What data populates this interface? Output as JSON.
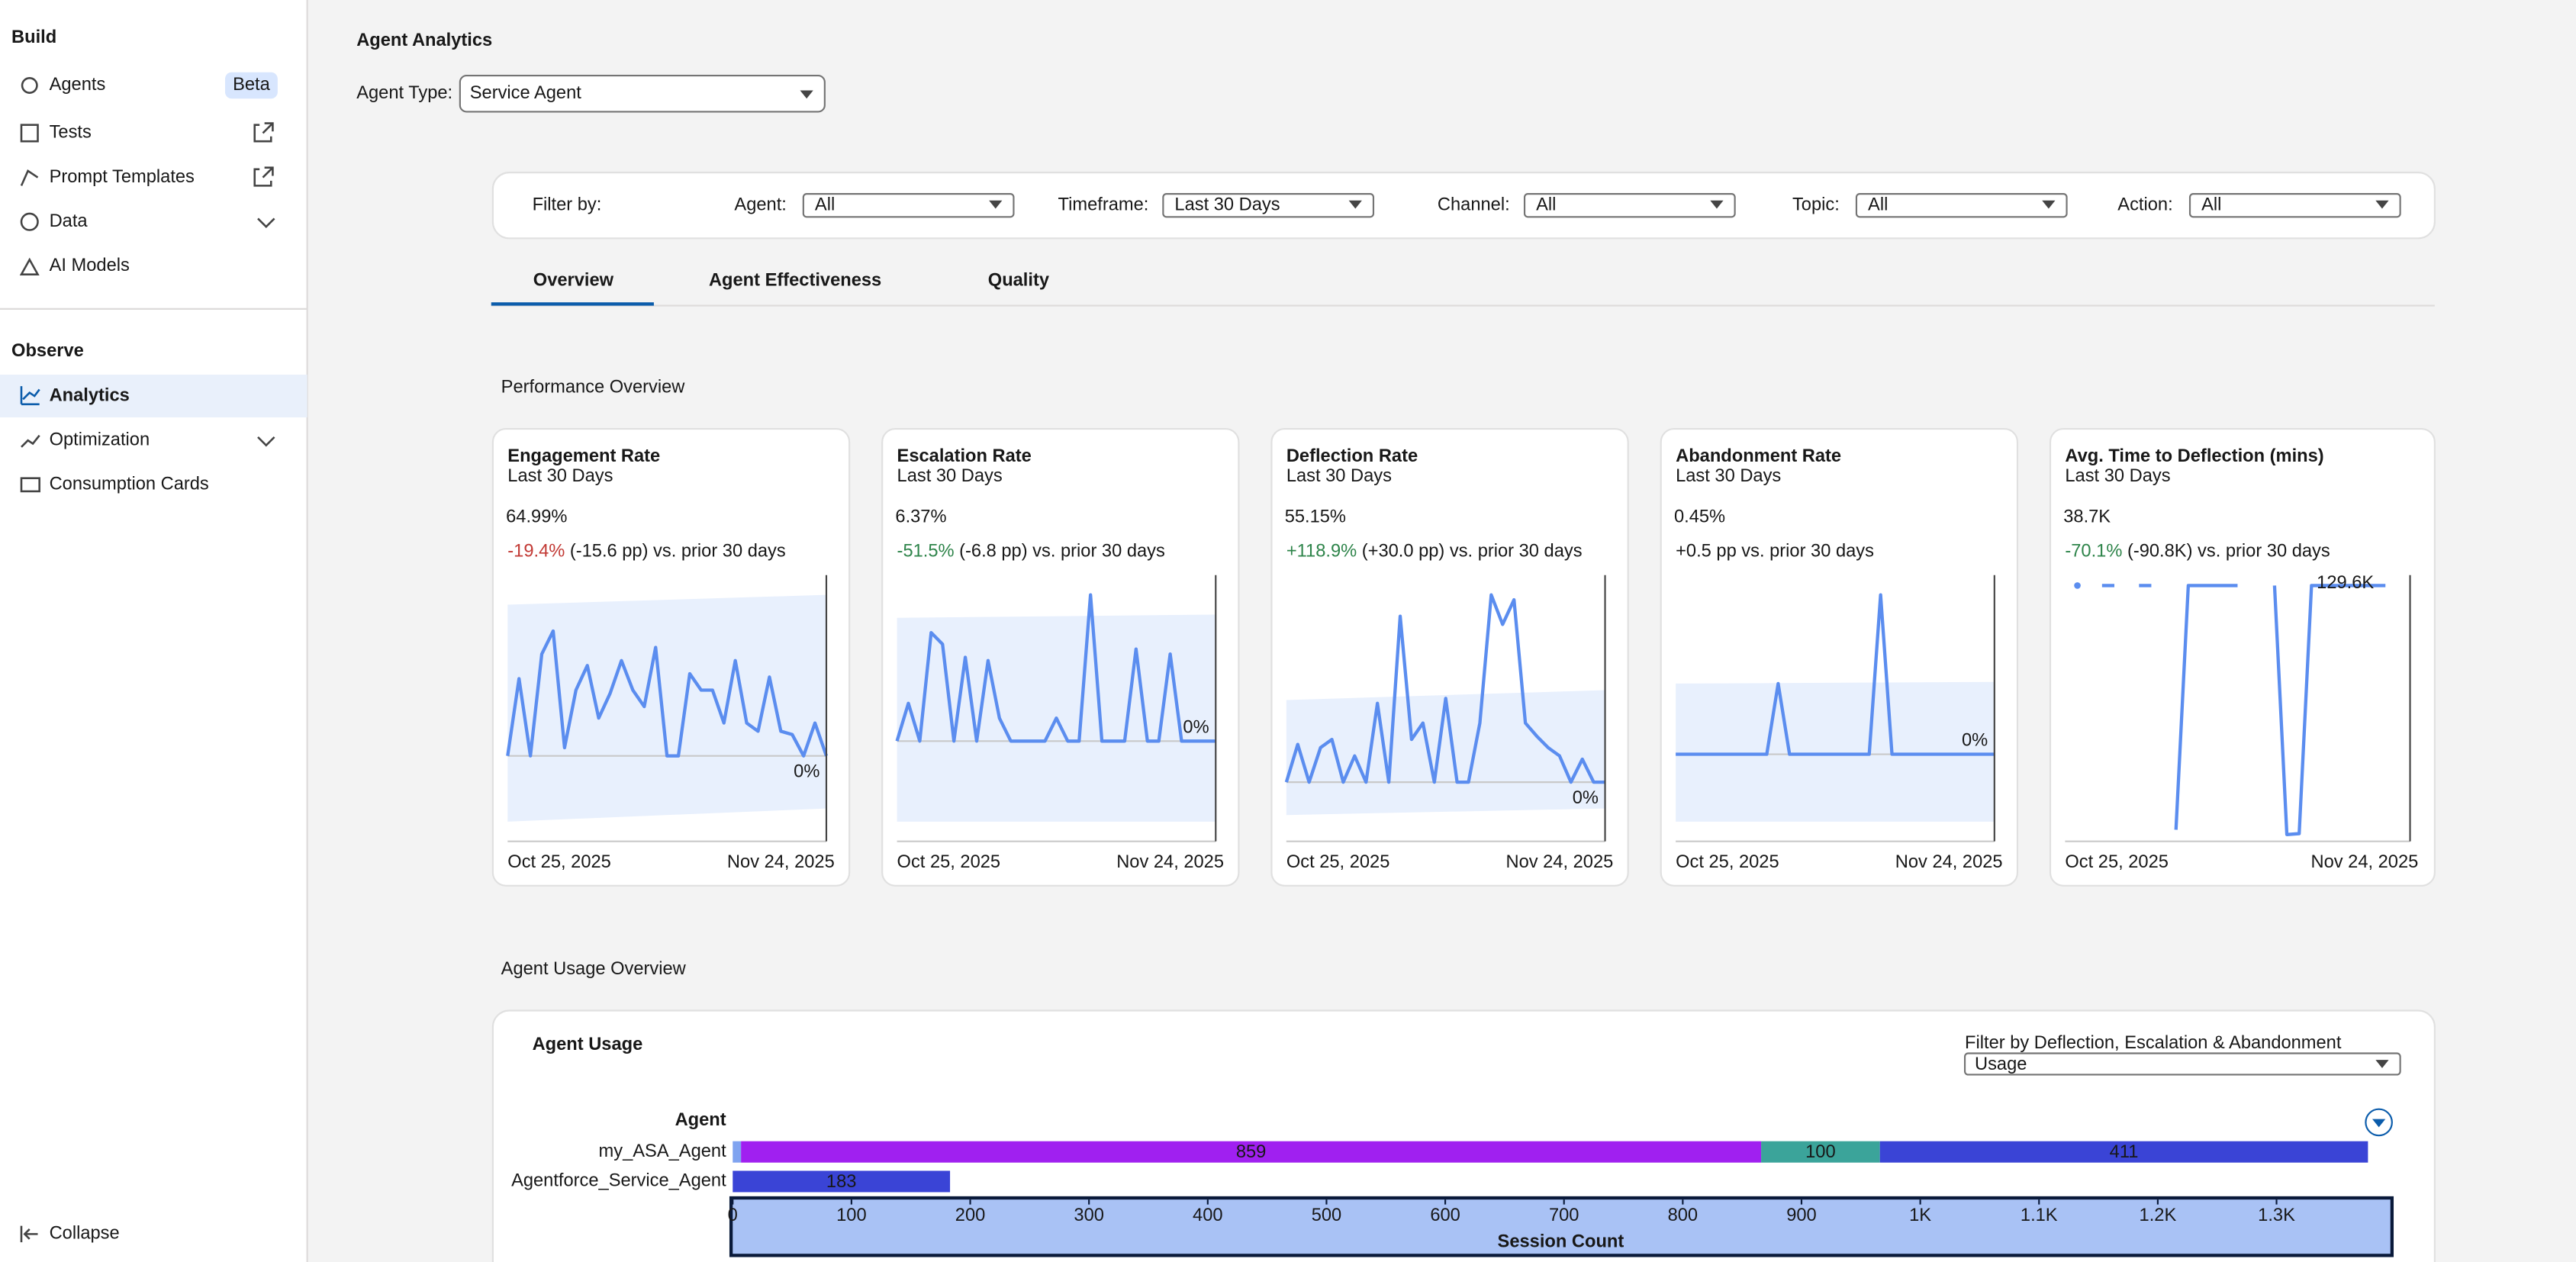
{
  "sidebar": {
    "sections": [
      {
        "title": "Build",
        "items": [
          {
            "label": "Agents",
            "badge": "Beta"
          },
          {
            "label": "Tests"
          },
          {
            "label": "Prompt Templates"
          },
          {
            "label": "Data"
          },
          {
            "label": "AI Models"
          }
        ]
      },
      {
        "title": "Observe",
        "items": [
          {
            "label": "Analytics"
          },
          {
            "label": "Optimization"
          },
          {
            "label": "Consumption Cards"
          }
        ]
      }
    ],
    "collapse": "Collapse"
  },
  "header": {
    "title": "Agent Analytics",
    "agent_type_label": "Agent Type:",
    "agent_type_value": "Service Agent"
  },
  "filters": {
    "label": "Filter by:",
    "items": [
      {
        "label": "Agent:",
        "value": "All"
      },
      {
        "label": "Timeframe:",
        "value": "Last 30 Days"
      },
      {
        "label": "Channel:",
        "value": "All"
      },
      {
        "label": "Topic:",
        "value": "All"
      },
      {
        "label": "Action:",
        "value": "All"
      }
    ]
  },
  "tabs": [
    "Overview",
    "Agent Effectiveness",
    "Quality"
  ],
  "performance_title": "Performance Overview",
  "usage_title": "Agent Usage Overview",
  "chart_data": [
    {
      "type": "line",
      "title": "Engagement Rate",
      "subtitle": "Last 30 Days",
      "kpi": "64.99%",
      "change": "-19.4%",
      "change_color": "#c23934",
      "change_note": "(-15.6 pp) vs. prior 30 days",
      "x_labels": [
        "Oct 25, 2025",
        "Nov 24, 2025"
      ],
      "baseline_label": "0%",
      "ylim": [
        -52,
        110
      ],
      "series": [
        {
          "color": "#5b8def",
          "values": [
            0,
            47,
            0,
            62,
            76,
            5,
            40,
            55,
            23,
            38,
            58,
            40,
            30,
            66,
            0,
            0,
            50,
            40,
            40,
            20,
            58,
            20,
            15,
            48,
            15,
            13,
            0,
            20,
            0
          ]
        }
      ]
    },
    {
      "type": "line",
      "title": "Escalation Rate",
      "subtitle": "Last 30 Days",
      "kpi": "6.37%",
      "change": "-51.5%",
      "change_color": "#2e844a",
      "change_note": "(-6.8 pp) vs. prior 30 days",
      "x_labels": [
        "Oct 25, 2025",
        "Nov 24, 2025"
      ],
      "baseline_label": "0%",
      "ylim": [
        -61,
        101
      ],
      "series": [
        {
          "color": "#5b8def",
          "values": [
            0,
            23,
            0,
            66,
            59,
            0,
            51,
            0,
            49,
            14,
            0,
            0,
            0,
            0,
            14,
            0,
            0,
            89,
            0,
            0,
            0,
            56,
            0,
            0,
            53,
            0,
            0,
            0,
            0
          ]
        }
      ]
    },
    {
      "type": "line",
      "title": "Deflection Rate",
      "subtitle": "Last 30 Days",
      "kpi": "55.15%",
      "change": "+118.9%",
      "change_color": "#2e844a",
      "change_note": "(+30.0 pp) vs. prior 30 days",
      "x_labels": [
        "Oct 25, 2025",
        "Nov 24, 2025"
      ],
      "baseline_label": "0%",
      "ylim": [
        -36,
        126
      ],
      "series": [
        {
          "color": "#5b8def",
          "values": [
            0,
            23,
            0,
            21,
            26,
            0,
            16,
            0,
            48,
            0,
            101,
            26,
            36,
            0,
            51,
            0,
            0,
            36,
            114,
            96,
            111,
            36,
            28,
            21,
            16,
            0,
            14,
            0,
            0
          ]
        }
      ]
    },
    {
      "type": "line",
      "title": "Abandonment Rate",
      "subtitle": "Last 30 Days",
      "kpi": "0.45%",
      "change_note": "+0.5 pp vs. prior 30 days",
      "x_labels": [
        "Oct 25, 2025",
        "Nov 24, 2025"
      ],
      "baseline_label": "0%",
      "ylim": [
        -53,
        109
      ],
      "series": [
        {
          "color": "#5b8def",
          "values": [
            0,
            0,
            0,
            0,
            0,
            0,
            0,
            0,
            0,
            43,
            0,
            0,
            0,
            0,
            0,
            0,
            0,
            0,
            97,
            0,
            0,
            0,
            0,
            0,
            0,
            0,
            0,
            0,
            0
          ]
        }
      ]
    },
    {
      "type": "line",
      "title": "Avg. Time to Deflection (mins)",
      "subtitle": "Last 30 Days",
      "kpi": "38.7K",
      "change": "-70.1%",
      "change_color": "#2e844a",
      "change_note": "(-90.8K) vs. prior 30 days",
      "x_labels": [
        "Oct 25, 2025",
        "Nov 24, 2025"
      ],
      "annotation": "129.6K",
      "ylim": [
        -3,
        135
      ],
      "series": [
        {
          "color": "#5b8def",
          "values": [
            null,
            129.6,
            null,
            129.6,
            129.6,
            null,
            129.6,
            129.6,
            null,
            3,
            129.6,
            129.6,
            129.6,
            129.6,
            129.6,
            null,
            null,
            129.6,
            0.5,
            1,
            129.6,
            129.6,
            129.6,
            129.6,
            129.6,
            129.6,
            129.6,
            null,
            null
          ]
        }
      ]
    },
    {
      "type": "bar",
      "orientation": "horizontal",
      "title": "Agent Usage",
      "y_label": "Agent",
      "x_label": "Session Count",
      "filter_label": "Filter by Deflection, Escalation & Abandonment",
      "filter_value": "Usage",
      "categories": [
        "my_ASA_Agent",
        "Agentforce_Service_Agent"
      ],
      "series": [
        {
          "color": "#7fa3f0",
          "values": [
            7,
            null
          ]
        },
        {
          "color": "#a020f0",
          "values": [
            859,
            null
          ]
        },
        {
          "color": "#3ba49a",
          "values": [
            100,
            null
          ]
        },
        {
          "color": "#3a44d6",
          "values": [
            411,
            183
          ]
        }
      ],
      "xlim": [
        0,
        1400
      ],
      "xticks": [
        0,
        100,
        200,
        300,
        400,
        500,
        600,
        700,
        800,
        900,
        {
          "value": 1000,
          "label": "1K"
        },
        {
          "value": 1100,
          "label": "1.1K"
        },
        {
          "value": 1200,
          "label": "1.2K"
        },
        {
          "value": 1300,
          "label": "1.3K"
        }
      ]
    }
  ]
}
